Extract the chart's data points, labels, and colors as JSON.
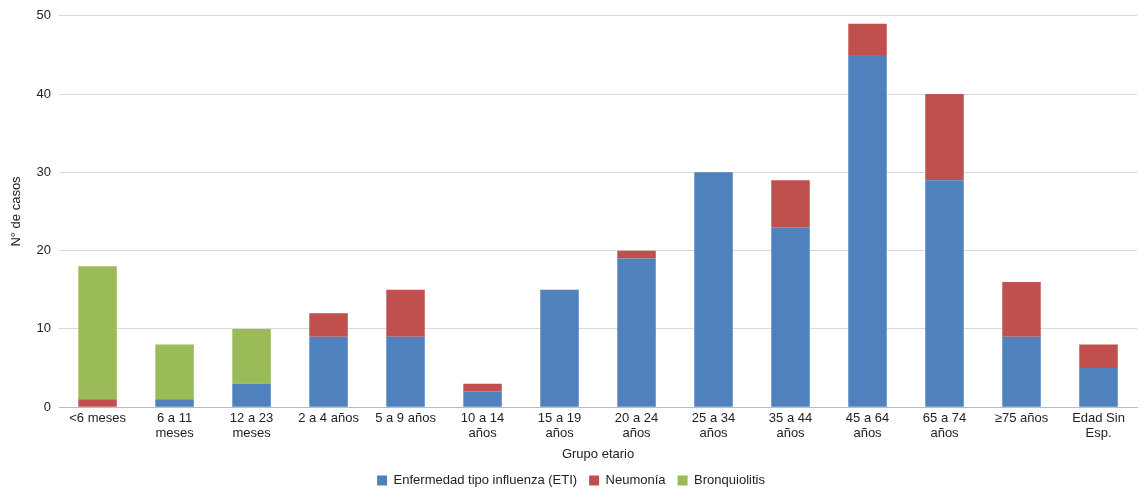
{
  "chart_data": {
    "type": "bar",
    "stacked": true,
    "xlabel": "Grupo etario",
    "ylabel": "N° de casos",
    "categories": [
      "<6 meses",
      "6 a 11 meses",
      "12 a 23 meses",
      "2 a 4 años",
      "5 a 9 años",
      "10 a 14 años",
      "15 a 19 años",
      "20 a 24 años",
      "25 a 34 años",
      "35 a 44 años",
      "45 a 64 años",
      "65 a 74 años",
      "≥75 años",
      "Edad Sin Esp."
    ],
    "series": [
      {
        "name": "Enfermedad tipo influenza (ETI)",
        "color": "#4f81bd",
        "values": [
          0,
          1,
          3,
          9,
          9,
          2,
          15,
          19,
          30,
          23,
          45,
          29,
          9,
          5
        ]
      },
      {
        "name": "Neumonía",
        "color": "#c0504d",
        "values": [
          1,
          0,
          0,
          3,
          6,
          1,
          0,
          1,
          0,
          6,
          4,
          11,
          7,
          3
        ]
      },
      {
        "name": "Bronquiolitis",
        "color": "#9bbb59",
        "values": [
          17,
          7,
          7,
          0,
          0,
          0,
          0,
          0,
          0,
          0,
          0,
          0,
          0,
          0
        ]
      }
    ],
    "ylim": [
      0,
      50
    ],
    "yticks": [
      0,
      10,
      20,
      30,
      40,
      50
    ],
    "grid": "y",
    "legend": "bottom"
  }
}
